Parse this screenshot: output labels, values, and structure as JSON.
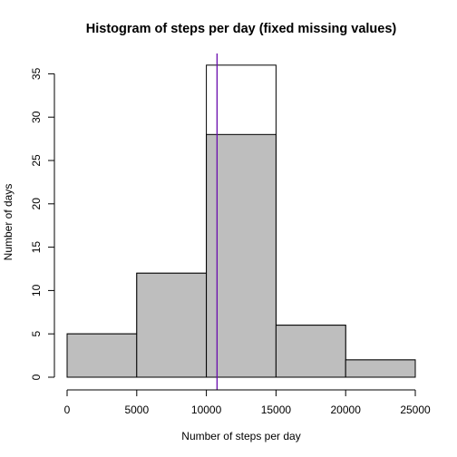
{
  "chart_data": {
    "type": "bar",
    "title": "Histogram of steps per day (fixed missing values)",
    "xlabel": "Number of steps per day",
    "ylabel": "Number of days",
    "xlim": [
      0,
      25000
    ],
    "ylim": [
      0,
      36
    ],
    "x_ticks": [
      0,
      5000,
      10000,
      15000,
      20000,
      25000
    ],
    "x_tick_labels": [
      "0",
      "5000",
      "10000",
      "15000",
      "20000",
      "25000"
    ],
    "y_ticks": [
      0,
      5,
      10,
      15,
      20,
      25,
      30,
      35
    ],
    "y_tick_labels": [
      "0",
      "5",
      "10",
      "15",
      "20",
      "25",
      "30",
      "35"
    ],
    "grid": false,
    "series": [
      {
        "style": "outline",
        "stroke_color": "#000000",
        "fill_color": "none",
        "bins": [
          {
            "start": 0,
            "end": 5000,
            "count": 5
          },
          {
            "start": 5000,
            "end": 10000,
            "count": 12
          },
          {
            "start": 10000,
            "end": 15000,
            "count": 36
          },
          {
            "start": 15000,
            "end": 20000,
            "count": 6
          },
          {
            "start": 20000,
            "end": 25000,
            "count": 2
          }
        ]
      },
      {
        "style": "filled",
        "stroke_color": "#000000",
        "fill_color": "#bebebe",
        "bins": [
          {
            "start": 0,
            "end": 5000,
            "count": 5
          },
          {
            "start": 5000,
            "end": 10000,
            "count": 12
          },
          {
            "start": 10000,
            "end": 15000,
            "count": 28
          },
          {
            "start": 15000,
            "end": 20000,
            "count": 6
          },
          {
            "start": 20000,
            "end": 25000,
            "count": 2
          }
        ]
      }
    ],
    "vertical_lines": [
      {
        "x": 10766,
        "color": "#6a0dad"
      }
    ]
  }
}
